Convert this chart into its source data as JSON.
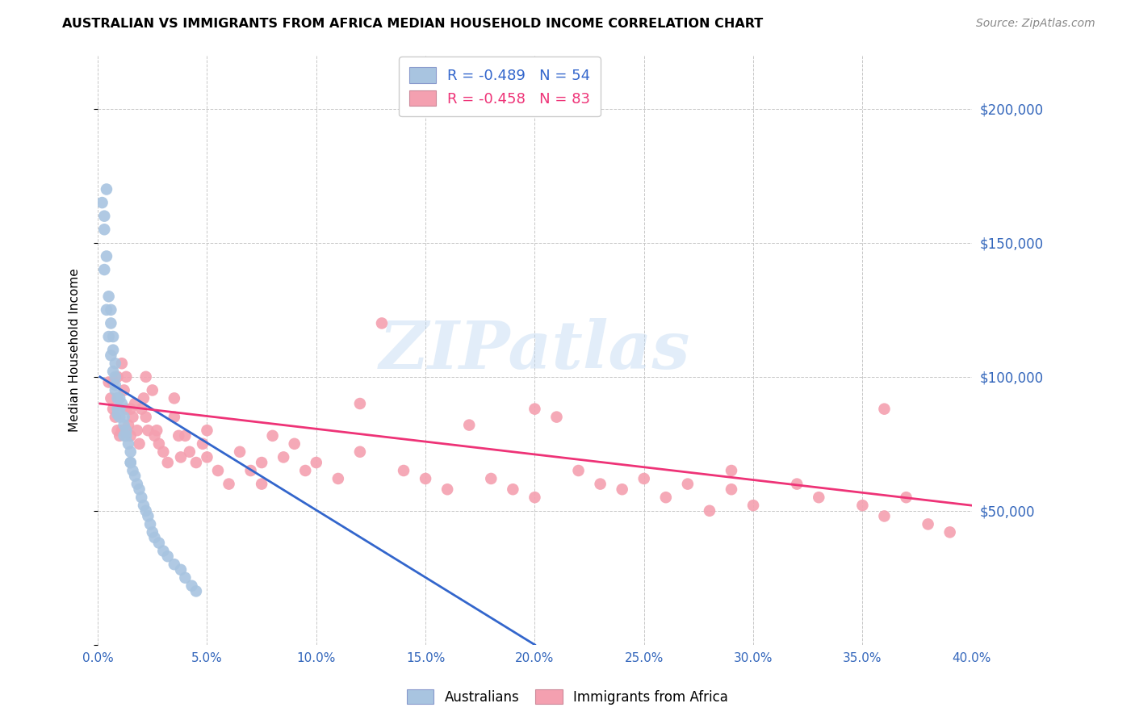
{
  "title": "AUSTRALIAN VS IMMIGRANTS FROM AFRICA MEDIAN HOUSEHOLD INCOME CORRELATION CHART",
  "source": "Source: ZipAtlas.com",
  "ylabel": "Median Household Income",
  "legend1_text": "R = -0.489   N = 54",
  "legend2_text": "R = -0.458   N = 83",
  "australians_color": "#a8c4e0",
  "africa_color": "#f4a0b0",
  "line_blue": "#3366cc",
  "line_pink": "#ee3377",
  "xlim": [
    0.0,
    0.4
  ],
  "ylim": [
    0,
    220000
  ],
  "background_color": "#ffffff",
  "grid_color": "#c8c8c8",
  "aus_line_x0": 0.001,
  "aus_line_y0": 100000,
  "aus_line_x1": 0.2,
  "aus_line_y1": 0,
  "aus_line_ext_x1": 0.4,
  "afr_line_x0": 0.001,
  "afr_line_y0": 90000,
  "afr_line_x1": 0.4,
  "afr_line_y1": 52000,
  "australians_x": [
    0.002,
    0.003,
    0.003,
    0.004,
    0.004,
    0.005,
    0.006,
    0.006,
    0.007,
    0.007,
    0.008,
    0.008,
    0.008,
    0.009,
    0.009,
    0.01,
    0.01,
    0.011,
    0.012,
    0.012,
    0.013,
    0.013,
    0.014,
    0.015,
    0.015,
    0.016,
    0.017,
    0.018,
    0.019,
    0.02,
    0.021,
    0.022,
    0.023,
    0.024,
    0.025,
    0.026,
    0.028,
    0.03,
    0.032,
    0.035,
    0.038,
    0.04,
    0.043,
    0.045,
    0.003,
    0.004,
    0.005,
    0.006,
    0.007,
    0.008,
    0.009,
    0.01,
    0.012,
    0.015
  ],
  "australians_y": [
    165000,
    160000,
    155000,
    170000,
    145000,
    130000,
    125000,
    120000,
    115000,
    110000,
    105000,
    100000,
    95000,
    92000,
    88000,
    88000,
    92000,
    90000,
    85000,
    82000,
    80000,
    78000,
    75000,
    72000,
    68000,
    65000,
    63000,
    60000,
    58000,
    55000,
    52000,
    50000,
    48000,
    45000,
    42000,
    40000,
    38000,
    35000,
    33000,
    30000,
    28000,
    25000,
    22000,
    20000,
    140000,
    125000,
    115000,
    108000,
    102000,
    97000,
    86000,
    85000,
    78000,
    68000
  ],
  "africa_x": [
    0.005,
    0.006,
    0.007,
    0.008,
    0.009,
    0.01,
    0.011,
    0.012,
    0.013,
    0.014,
    0.015,
    0.016,
    0.017,
    0.018,
    0.019,
    0.02,
    0.021,
    0.022,
    0.023,
    0.025,
    0.026,
    0.027,
    0.028,
    0.03,
    0.032,
    0.035,
    0.037,
    0.04,
    0.042,
    0.045,
    0.048,
    0.05,
    0.055,
    0.06,
    0.065,
    0.07,
    0.075,
    0.08,
    0.085,
    0.09,
    0.095,
    0.1,
    0.11,
    0.12,
    0.13,
    0.14,
    0.15,
    0.16,
    0.17,
    0.18,
    0.19,
    0.2,
    0.21,
    0.22,
    0.23,
    0.24,
    0.25,
    0.26,
    0.27,
    0.28,
    0.29,
    0.3,
    0.32,
    0.33,
    0.35,
    0.36,
    0.37,
    0.38,
    0.39,
    0.009,
    0.011,
    0.013,
    0.015,
    0.007,
    0.022,
    0.035,
    0.05,
    0.12,
    0.2,
    0.29,
    0.36,
    0.038,
    0.075
  ],
  "africa_y": [
    98000,
    92000,
    88000,
    85000,
    80000,
    78000,
    80000,
    95000,
    88000,
    82000,
    78000,
    85000,
    90000,
    80000,
    75000,
    88000,
    92000,
    85000,
    80000,
    95000,
    78000,
    80000,
    75000,
    72000,
    68000,
    85000,
    78000,
    78000,
    72000,
    68000,
    75000,
    70000,
    65000,
    60000,
    72000,
    65000,
    60000,
    78000,
    70000,
    75000,
    65000,
    68000,
    62000,
    72000,
    120000,
    65000,
    62000,
    58000,
    82000,
    62000,
    58000,
    55000,
    85000,
    65000,
    60000,
    58000,
    62000,
    55000,
    60000,
    50000,
    58000,
    52000,
    60000,
    55000,
    52000,
    48000,
    55000,
    45000,
    42000,
    100000,
    105000,
    100000,
    88000,
    98000,
    100000,
    92000,
    80000,
    90000,
    88000,
    65000,
    88000,
    70000,
    68000
  ]
}
